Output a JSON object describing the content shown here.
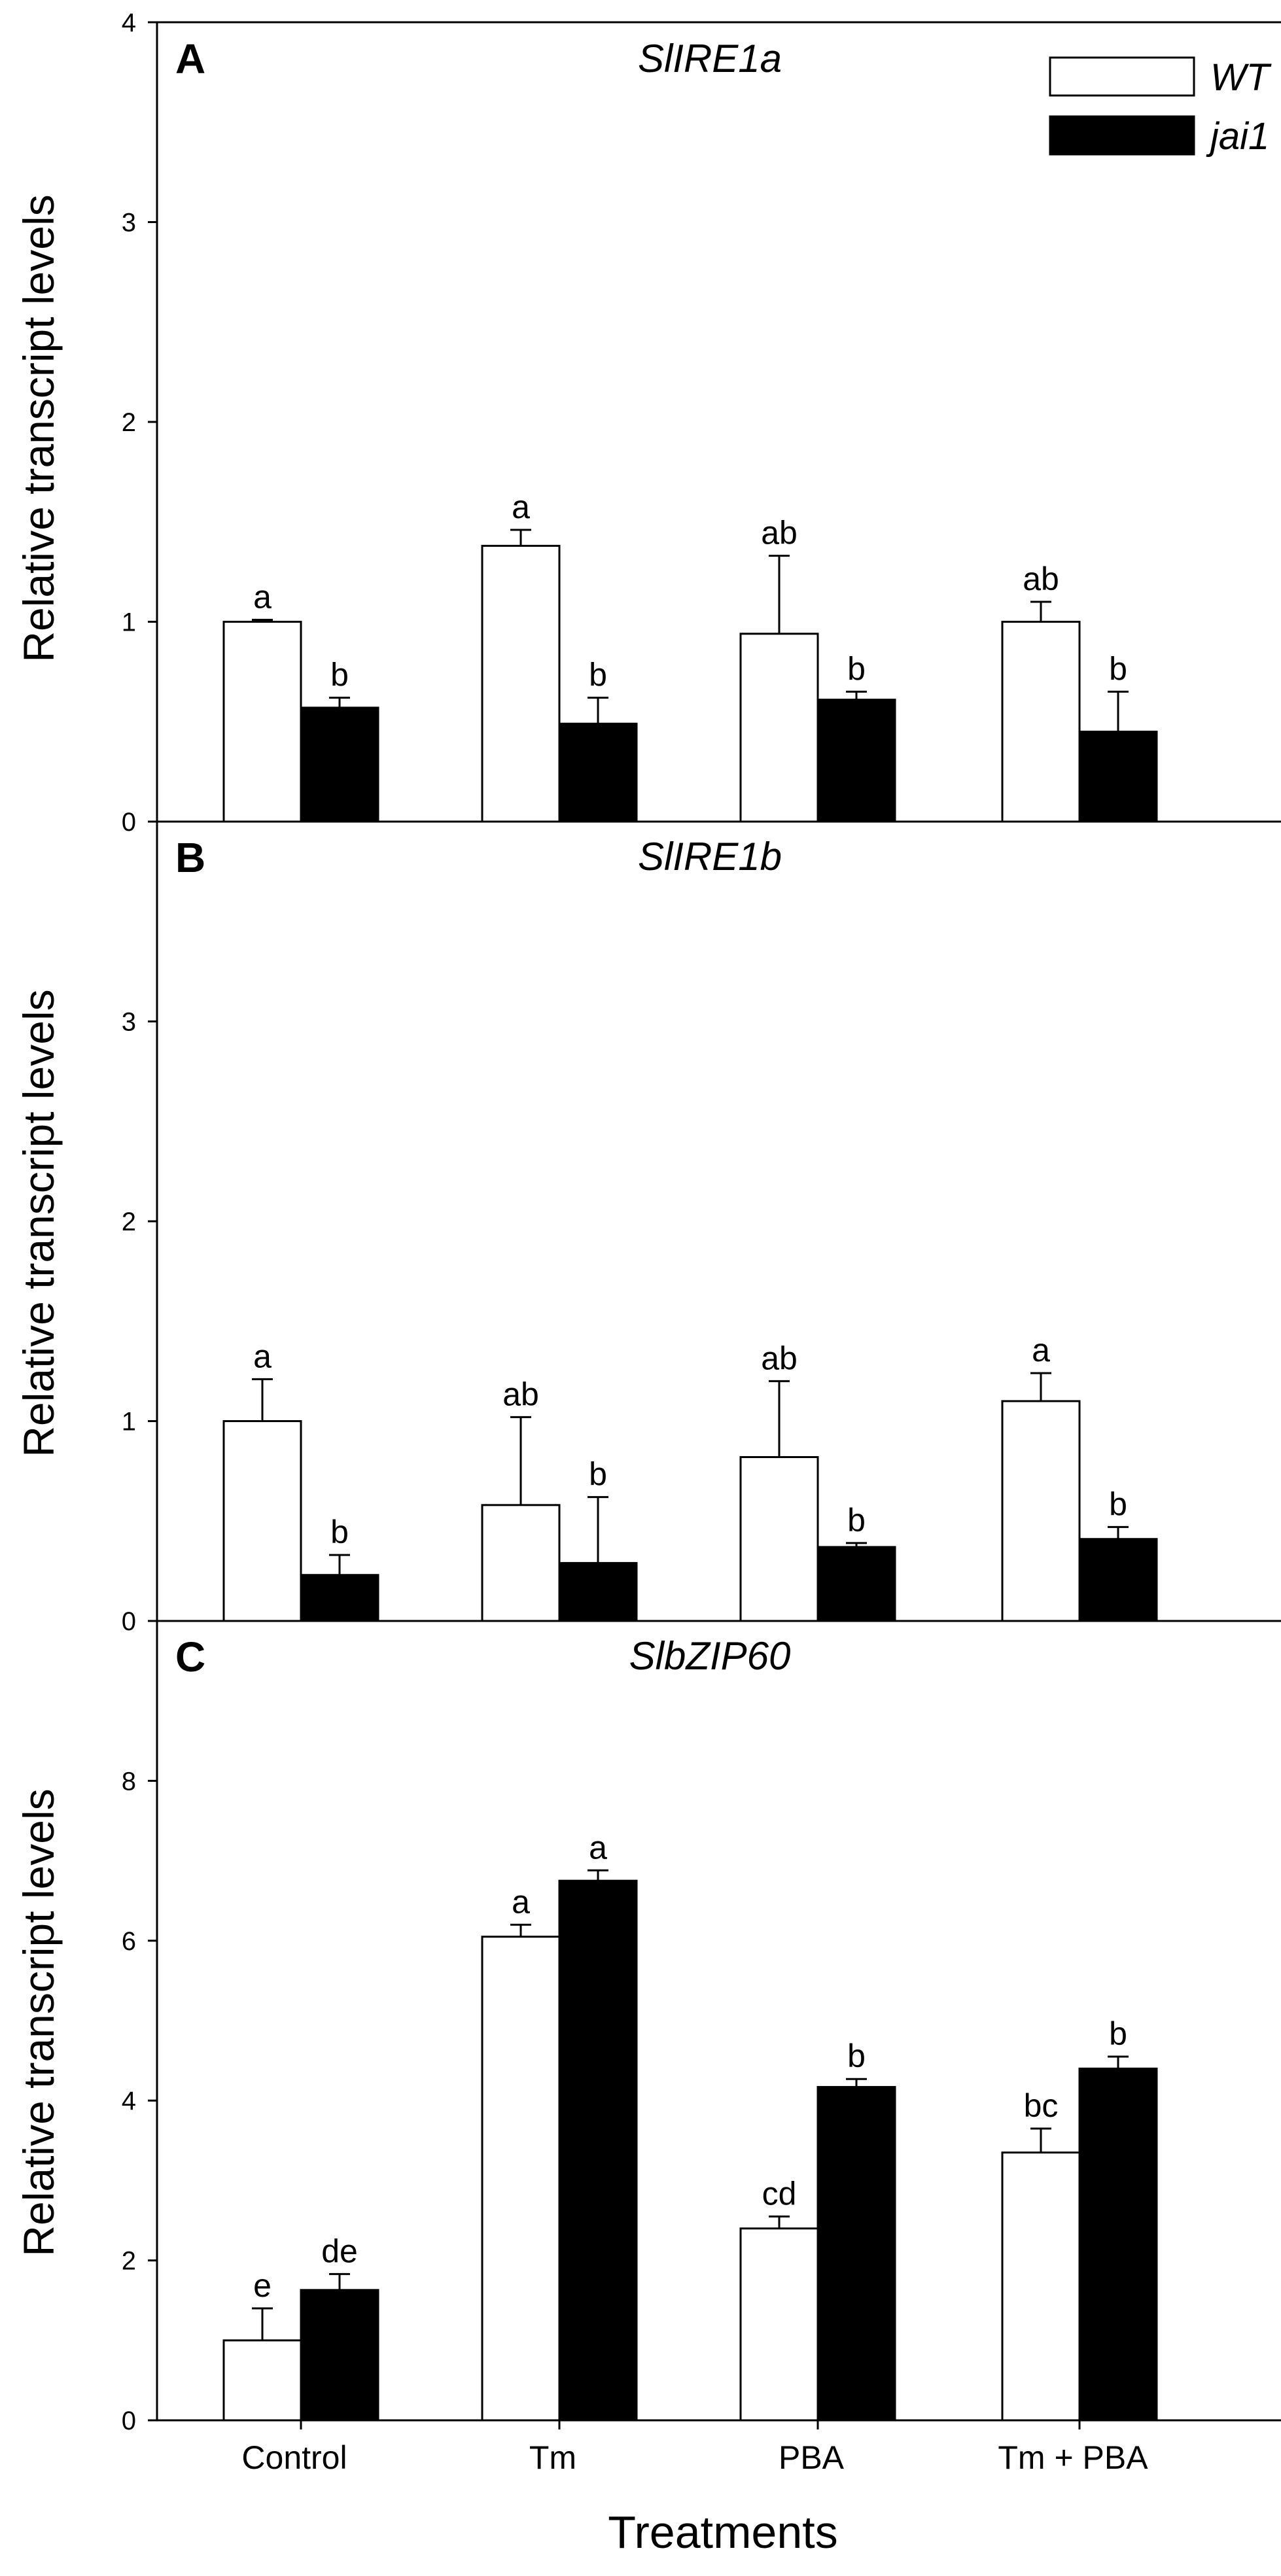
{
  "xlabel": "Treatments",
  "legend": [
    {
      "name": "WT",
      "color": "#ffffff"
    },
    {
      "name": "jai1",
      "color": "#000000"
    }
  ],
  "chart_data": [
    {
      "type": "bar",
      "panel": "A",
      "title": "SlIRE1a",
      "ylabel": "Relative transcript levels",
      "ylim": [
        0,
        4
      ],
      "yticks": [
        0,
        1,
        2,
        3,
        4
      ],
      "categories": [
        "Control",
        "Tm",
        "PBA",
        "Tm + PBA"
      ],
      "series": [
        {
          "name": "WT",
          "values": [
            1.0,
            1.38,
            0.94,
            1.0
          ],
          "errors": [
            0.01,
            0.08,
            0.39,
            0.1
          ],
          "letters": [
            "a",
            "a",
            "ab",
            "ab"
          ]
        },
        {
          "name": "jai1",
          "values": [
            0.57,
            0.49,
            0.61,
            0.45
          ],
          "errors": [
            0.05,
            0.13,
            0.04,
            0.2
          ],
          "letters": [
            "b",
            "b",
            "b",
            "b"
          ]
        }
      ]
    },
    {
      "type": "bar",
      "panel": "B",
      "title": "SlIRE1b",
      "ylabel": "Relative transcript levels",
      "ylim": [
        0,
        4
      ],
      "yticks": [
        0,
        1,
        2,
        3
      ],
      "categories": [
        "Control",
        "Tm",
        "PBA",
        "Tm + PBA"
      ],
      "series": [
        {
          "name": "WT",
          "values": [
            1.0,
            0.58,
            0.82,
            1.1
          ],
          "errors": [
            0.21,
            0.44,
            0.38,
            0.14
          ],
          "letters": [
            "a",
            "ab",
            "ab",
            "a"
          ]
        },
        {
          "name": "jai1",
          "values": [
            0.23,
            0.29,
            0.37,
            0.41
          ],
          "errors": [
            0.1,
            0.33,
            0.02,
            0.06
          ],
          "letters": [
            "b",
            "b",
            "b",
            "b"
          ]
        }
      ]
    },
    {
      "type": "bar",
      "panel": "C",
      "title": "SlbZIP60",
      "ylabel": "Relative transcript levels",
      "ylim": [
        0,
        10
      ],
      "yticks": [
        0,
        2,
        4,
        6,
        8
      ],
      "categories": [
        "Control",
        "Tm",
        "PBA",
        "Tm + PBA"
      ],
      "series": [
        {
          "name": "WT",
          "values": [
            1.0,
            6.05,
            2.4,
            3.35
          ],
          "errors": [
            0.4,
            0.15,
            0.15,
            0.3
          ],
          "letters": [
            "e",
            "a",
            "cd",
            "bc"
          ]
        },
        {
          "name": "jai1",
          "values": [
            1.63,
            6.75,
            4.17,
            4.4
          ],
          "errors": [
            0.2,
            0.13,
            0.1,
            0.15
          ],
          "letters": [
            "de",
            "a",
            "b",
            "b"
          ]
        }
      ]
    }
  ]
}
